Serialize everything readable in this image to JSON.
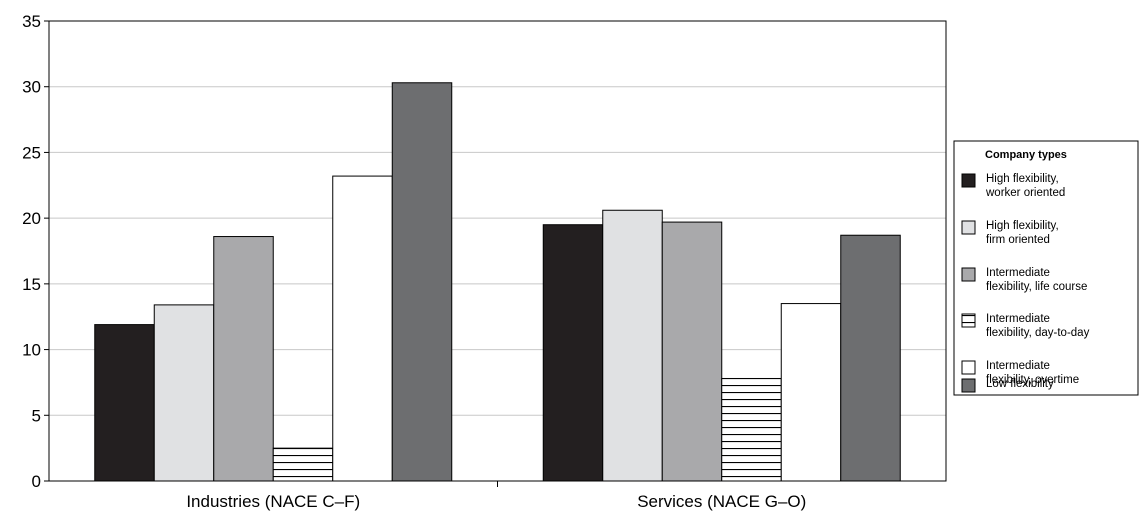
{
  "chart_data": {
    "type": "bar",
    "categories": [
      "Industries (NACE C–F)",
      "Services (NACE G–O)"
    ],
    "ylim": [
      0,
      35
    ],
    "yticks": [
      0,
      5,
      10,
      15,
      20,
      25,
      30,
      35
    ],
    "grid": true,
    "legend_title": "Company types",
    "legend_position": "right",
    "series": [
      {
        "name": "High flexibility, worker oriented",
        "label_lines": [
          "High flexibility,",
          "worker oriented"
        ],
        "color": "#231f20",
        "pattern": "solid",
        "values": [
          11.9,
          19.5
        ]
      },
      {
        "name": "High flexibility, firm oriented",
        "label_lines": [
          "High flexibility,",
          "firm oriented"
        ],
        "color": "#e0e1e3",
        "pattern": "solid",
        "values": [
          13.4,
          20.6
        ]
      },
      {
        "name": "Intermediate flexibility, life course",
        "label_lines": [
          "Intermediate",
          "flexibility, life course"
        ],
        "color": "#a9a9ab",
        "pattern": "solid",
        "values": [
          18.6,
          19.7
        ]
      },
      {
        "name": "Intermediate flexibility, day-to-day",
        "label_lines": [
          "Intermediate",
          "flexibility, day-to-day"
        ],
        "color": "#ffffff",
        "pattern": "hlines",
        "values": [
          2.5,
          7.8
        ]
      },
      {
        "name": "Intermediate flexibility, overtime",
        "label_lines": [
          "Intermediate",
          "flexibility, overtime"
        ],
        "color": "#ffffff",
        "pattern": "solid",
        "values": [
          23.2,
          13.5
        ]
      },
      {
        "name": "Low flexibility",
        "label_lines": [
          "Low flexibility"
        ],
        "color": "#6d6e70",
        "pattern": "solid",
        "values": [
          30.3,
          18.7
        ]
      }
    ]
  }
}
